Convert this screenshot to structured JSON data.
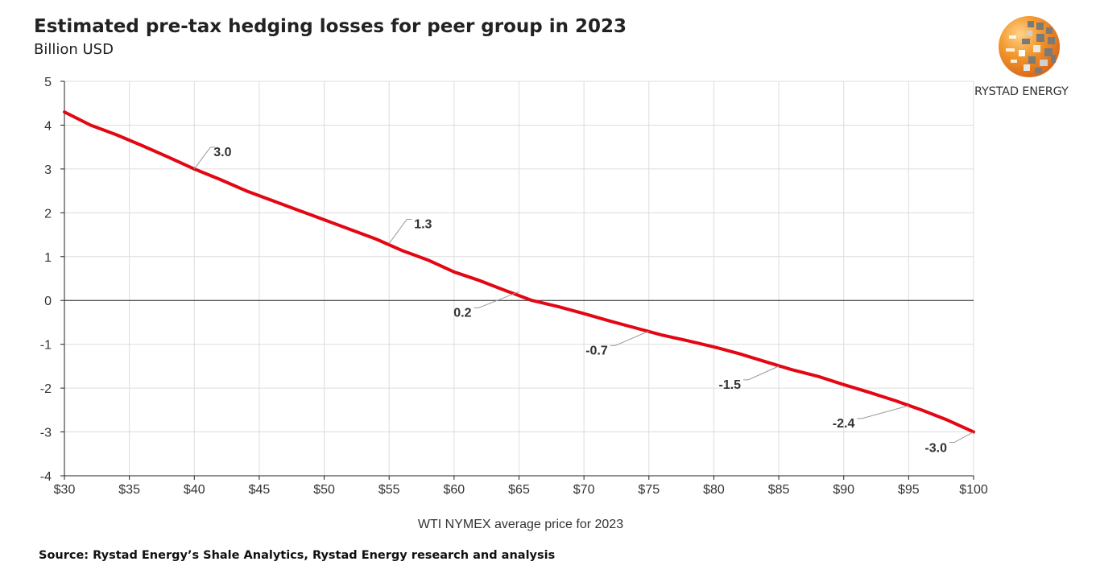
{
  "title": "Estimated pre-tax hedging losses for peer group in 2023",
  "subtitle": "Billion USD",
  "logo": {
    "text": "RYSTAD ENERGY",
    "icon": "rystad-globe-logo"
  },
  "source": "Source: Rystad Energy’s Shale Analytics,  Rystad Energy research and analysis",
  "colors": {
    "line": "#e30613",
    "grid": "#dddddd",
    "axis": "#222222",
    "leader": "#999999"
  },
  "chart_data": {
    "type": "line",
    "title": "Estimated pre-tax hedging losses for peer group in 2023",
    "subtitle": "Billion USD",
    "xlabel": "WTI NYMEX average price for 2023",
    "ylabel": "",
    "xlim": [
      30,
      100
    ],
    "ylim": [
      -4,
      5
    ],
    "grid": true,
    "x_tick_values": [
      30,
      35,
      40,
      45,
      50,
      55,
      60,
      65,
      70,
      75,
      80,
      85,
      90,
      95,
      100
    ],
    "x_tick_labels": [
      "$30",
      "$35",
      "$40",
      "$45",
      "$50",
      "$55",
      "$60",
      "$65",
      "$70",
      "$75",
      "$80",
      "$85",
      "$90",
      "$95",
      "$100"
    ],
    "y_tick_values": [
      5,
      4,
      3,
      2,
      1,
      0,
      -1,
      -2,
      -3,
      -4
    ],
    "y_tick_labels": [
      "5",
      "4",
      "3",
      "2",
      "1",
      "0",
      "-1",
      "-2",
      "-3",
      "-4"
    ],
    "series": [
      {
        "color": "#e30613",
        "x": [
          30,
          32,
          34,
          36,
          38,
          40,
          42,
          44,
          46,
          48,
          50,
          52,
          54,
          56,
          58,
          60,
          62,
          64,
          66,
          68,
          70,
          72,
          74,
          76,
          78,
          80,
          82,
          84,
          86,
          88,
          90,
          92,
          94,
          96,
          98,
          100
        ],
        "y": [
          4.3,
          4.0,
          3.78,
          3.53,
          3.27,
          3.0,
          2.76,
          2.5,
          2.28,
          2.06,
          1.84,
          1.62,
          1.4,
          1.14,
          0.92,
          0.65,
          0.45,
          0.22,
          0.0,
          -0.14,
          -0.3,
          -0.47,
          -0.63,
          -0.79,
          -0.92,
          -1.06,
          -1.22,
          -1.4,
          -1.58,
          -1.73,
          -1.92,
          -2.1,
          -2.29,
          -2.5,
          -2.73,
          -3.0
        ]
      }
    ],
    "annotations": [
      {
        "x": 40,
        "y": 3.0,
        "label": "3.0"
      },
      {
        "x": 55,
        "y": 1.3,
        "label": "1.3"
      },
      {
        "x": 65,
        "y": 0.2,
        "label": "0.2"
      },
      {
        "x": 75,
        "y": -0.7,
        "label": "-0.7"
      },
      {
        "x": 85,
        "y": -1.5,
        "label": "-1.5"
      },
      {
        "x": 95,
        "y": -2.4,
        "label": "-2.4"
      },
      {
        "x": 100,
        "y": -3.0,
        "label": "-3.0"
      }
    ]
  }
}
